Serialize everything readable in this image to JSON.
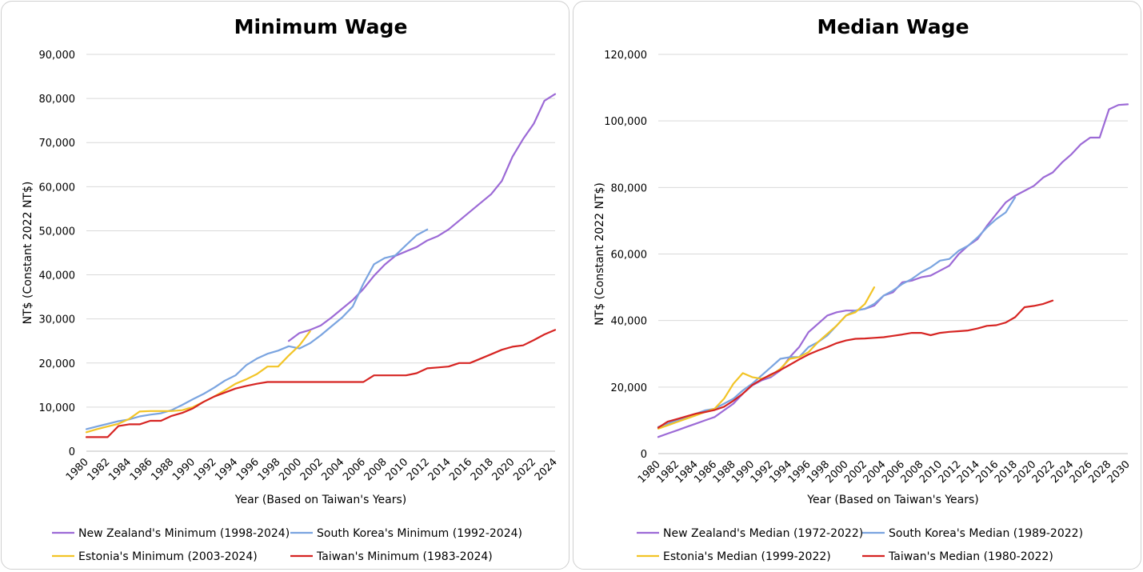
{
  "chart_data": [
    {
      "type": "line",
      "title": "Minimum Wage",
      "xlabel": "Year (Based on Taiwan's Years)",
      "ylabel": "NT$ (Constant 2022 NT$)",
      "ylim": [
        0,
        90000
      ],
      "yticks": [
        0,
        10000,
        20000,
        30000,
        40000,
        50000,
        60000,
        70000,
        80000,
        90000
      ],
      "ytick_labels": [
        "0",
        "10,000",
        "20,000",
        "30,000",
        "40,000",
        "50,000",
        "60,000",
        "70,000",
        "80,000",
        "90,000"
      ],
      "xlim": [
        1980,
        2024
      ],
      "xtick_labels": [
        "1980",
        "1982",
        "1984",
        "1986",
        "1988",
        "1990",
        "1992",
        "1994",
        "1996",
        "1998",
        "2000",
        "2002",
        "2004",
        "2006",
        "2008",
        "2010",
        "2012",
        "2014",
        "2016",
        "2018",
        "2020",
        "2022",
        "2024"
      ],
      "grid": "horizontal",
      "legend": "bottom",
      "series": [
        {
          "name": "New Zealand's Minimum (1998-2024)",
          "color": "#9c6ad6",
          "x": [
            1999,
            2000,
            2001,
            2002,
            2003,
            2004,
            2005,
            2006,
            2007,
            2008,
            2009,
            2010,
            2011,
            2012,
            2013,
            2014,
            2015,
            2016,
            2017,
            2018,
            2019,
            2020,
            2021,
            2022,
            2023,
            2024
          ],
          "y": [
            25000,
            26800,
            27500,
            28500,
            30300,
            32300,
            34300,
            36800,
            39800,
            42300,
            44300,
            45300,
            46300,
            47800,
            48800,
            50300,
            52300,
            54300,
            56300,
            58300,
            61300,
            66800,
            70800,
            74300,
            79500,
            81000
          ]
        },
        {
          "name": "South Korea's Minimum (1992-2024)",
          "color": "#7aa4e0",
          "x": [
            1980,
            1981,
            1982,
            1983,
            1984,
            1985,
            1986,
            1987,
            1988,
            1989,
            1990,
            1991,
            1992,
            1993,
            1994,
            1995,
            1996,
            1997,
            1998,
            1999,
            2000,
            2001,
            2002,
            2003,
            2004,
            2005,
            2006,
            2007,
            2008,
            2009,
            2010,
            2011,
            2012
          ],
          "y": [
            5000,
            5600,
            6200,
            6800,
            7200,
            7900,
            8300,
            8600,
            9300,
            10500,
            11800,
            13000,
            14400,
            16000,
            17200,
            19500,
            21000,
            22100,
            22800,
            23800,
            23300,
            24500,
            26300,
            28300,
            30300,
            32800,
            38000,
            42400,
            43800,
            44400,
            46700,
            49000,
            50300
          ]
        },
        {
          "name": "Estonia's Minimum (2003-2024)",
          "color": "#f2c426",
          "x": [
            1980,
            1981,
            1982,
            1983,
            1984,
            1985,
            1986,
            1987,
            1988,
            1989,
            1990,
            1991,
            1992,
            1993,
            1994,
            1995,
            1996,
            1997,
            1998,
            1999,
            2000,
            2001
          ],
          "y": [
            4300,
            5000,
            5600,
            6200,
            7300,
            9000,
            9100,
            9100,
            9100,
            9300,
            10000,
            11200,
            12400,
            13800,
            15300,
            16300,
            17500,
            19200,
            19200,
            21700,
            24000,
            27200
          ]
        },
        {
          "name": "Taiwan's Minimum (1983-2024)",
          "color": "#d62422",
          "x": [
            1980,
            1981,
            1982,
            1983,
            1984,
            1985,
            1986,
            1987,
            1988,
            1989,
            1990,
            1991,
            1992,
            1993,
            1994,
            1995,
            1996,
            1997,
            1998,
            1999,
            2000,
            2001,
            2002,
            2003,
            2004,
            2005,
            2006,
            2007,
            2008,
            2009,
            2010,
            2011,
            2012,
            2013,
            2014,
            2015,
            2016,
            2017,
            2018,
            2019,
            2020,
            2021,
            2022,
            2023,
            2024
          ],
          "y": [
            3200,
            3200,
            3200,
            5700,
            6100,
            6100,
            6900,
            6900,
            8000,
            8700,
            9700,
            11200,
            12400,
            13300,
            14200,
            14800,
            15300,
            15700,
            15700,
            15700,
            15700,
            15700,
            15700,
            15700,
            15700,
            15700,
            15700,
            17200,
            17200,
            17200,
            17200,
            17700,
            18800,
            19000,
            19200,
            20000,
            20000,
            21000,
            22000,
            23000,
            23700,
            24000,
            25200,
            26500,
            27500
          ]
        }
      ]
    },
    {
      "type": "line",
      "title": "Median Wage",
      "xlabel": "Year (Based on Taiwan's Years)",
      "ylabel": "NT$ (Constant 2022 NT$)",
      "ylim": [
        0,
        120000
      ],
      "yticks": [
        0,
        20000,
        40000,
        60000,
        80000,
        100000,
        120000
      ],
      "ytick_labels": [
        "0",
        "20,000",
        "40,000",
        "60,000",
        "80,000",
        "100,000",
        "120,000"
      ],
      "xlim": [
        1980,
        2030
      ],
      "xtick_labels": [
        "1980",
        "1982",
        "1984",
        "1986",
        "1988",
        "1990",
        "1992",
        "1994",
        "1996",
        "1998",
        "2000",
        "2002",
        "2004",
        "2006",
        "2008",
        "2010",
        "2012",
        "2014",
        "2016",
        "2018",
        "2020",
        "2022",
        "2024",
        "2026",
        "2028",
        "2030"
      ],
      "grid": "horizontal",
      "legend": "bottom",
      "series": [
        {
          "name": "New Zealand's Median (1972-2022)",
          "color": "#9c6ad6",
          "x": [
            1980,
            1981,
            1982,
            1983,
            1984,
            1985,
            1986,
            1987,
            1988,
            1989,
            1990,
            1991,
            1992,
            1993,
            1994,
            1995,
            1996,
            1997,
            1998,
            1999,
            2000,
            2001,
            2002,
            2003,
            2004,
            2005,
            2006,
            2007,
            2008,
            2009,
            2010,
            2011,
            2012,
            2013,
            2014,
            2015,
            2016,
            2017,
            2018,
            2019,
            2020,
            2021,
            2022,
            2023,
            2024,
            2025,
            2026,
            2027,
            2028,
            2029,
            2030
          ],
          "y": [
            5000,
            6000,
            7000,
            8000,
            9000,
            10000,
            11000,
            13000,
            15000,
            18000,
            20500,
            22000,
            23000,
            25000,
            29000,
            32000,
            36500,
            39000,
            41500,
            42500,
            43000,
            43000,
            43500,
            44500,
            47500,
            48500,
            51500,
            52000,
            53000,
            53500,
            55000,
            56500,
            60000,
            62500,
            64500,
            68500,
            72000,
            75500,
            77500,
            79000,
            80500,
            83000,
            84500,
            87500,
            90000,
            93000,
            95000,
            95000,
            103500,
            104800,
            105000
          ]
        },
        {
          "name": "South Korea's Median (1989-2022)",
          "color": "#7aa4e0",
          "x": [
            1980,
            1981,
            1982,
            1983,
            1984,
            1985,
            1986,
            1987,
            1988,
            1989,
            1990,
            1991,
            1992,
            1993,
            1994,
            1995,
            1996,
            1997,
            1998,
            1999,
            2000,
            2001,
            2002,
            2003,
            2004,
            2005,
            2006,
            2007,
            2008,
            2009,
            2010,
            2011,
            2012,
            2013,
            2014,
            2015,
            2016,
            2017,
            2018
          ],
          "y": [
            8000,
            9000,
            10000,
            11000,
            12000,
            13000,
            13500,
            15000,
            16500,
            19000,
            21000,
            23500,
            26000,
            28500,
            29000,
            29000,
            32000,
            33500,
            35500,
            38500,
            41500,
            43000,
            43500,
            45000,
            47500,
            49000,
            51000,
            52500,
            54500,
            56000,
            58000,
            58500,
            61000,
            62500,
            65000,
            68000,
            70500,
            72500,
            77000
          ]
        },
        {
          "name": "Estonia's Median (1999-2022)",
          "color": "#f2c426",
          "x": [
            1980,
            1981,
            1982,
            1983,
            1984,
            1985,
            1986,
            1987,
            1988,
            1989,
            1990,
            1991,
            1992,
            1993,
            1994,
            1995,
            1996,
            1997,
            1998,
            1999,
            2000,
            2001,
            2002,
            2003
          ],
          "y": [
            7500,
            8500,
            9500,
            10500,
            11500,
            12500,
            13500,
            16500,
            21000,
            24200,
            23000,
            22500,
            23500,
            25500,
            28500,
            29000,
            30500,
            33500,
            36000,
            38500,
            41500,
            42500,
            45000,
            50000
          ]
        },
        {
          "name": "Taiwan's Median (1980-2022)",
          "color": "#d62422",
          "x": [
            1980,
            1981,
            1982,
            1983,
            1984,
            1985,
            1986,
            1987,
            1988,
            1989,
            1990,
            1991,
            1992,
            1993,
            1994,
            1995,
            1996,
            1997,
            1998,
            1999,
            2000,
            2001,
            2002,
            2003,
            2004,
            2005,
            2006,
            2007,
            2008,
            2009,
            2010,
            2011,
            2012,
            2013,
            2014,
            2015,
            2016,
            2017,
            2018,
            2019,
            2020,
            2021,
            2022
          ],
          "y": [
            7800,
            9600,
            10400,
            11200,
            12000,
            12500,
            13100,
            14100,
            15900,
            18000,
            20600,
            22300,
            23800,
            25100,
            26700,
            28300,
            29800,
            31000,
            32000,
            33200,
            34000,
            34500,
            34600,
            34800,
            35000,
            35400,
            35800,
            36300,
            36300,
            35600,
            36300,
            36600,
            36800,
            37000,
            37600,
            38400,
            38600,
            39400,
            41000,
            44000,
            44400,
            45000,
            46000
          ]
        }
      ]
    }
  ]
}
